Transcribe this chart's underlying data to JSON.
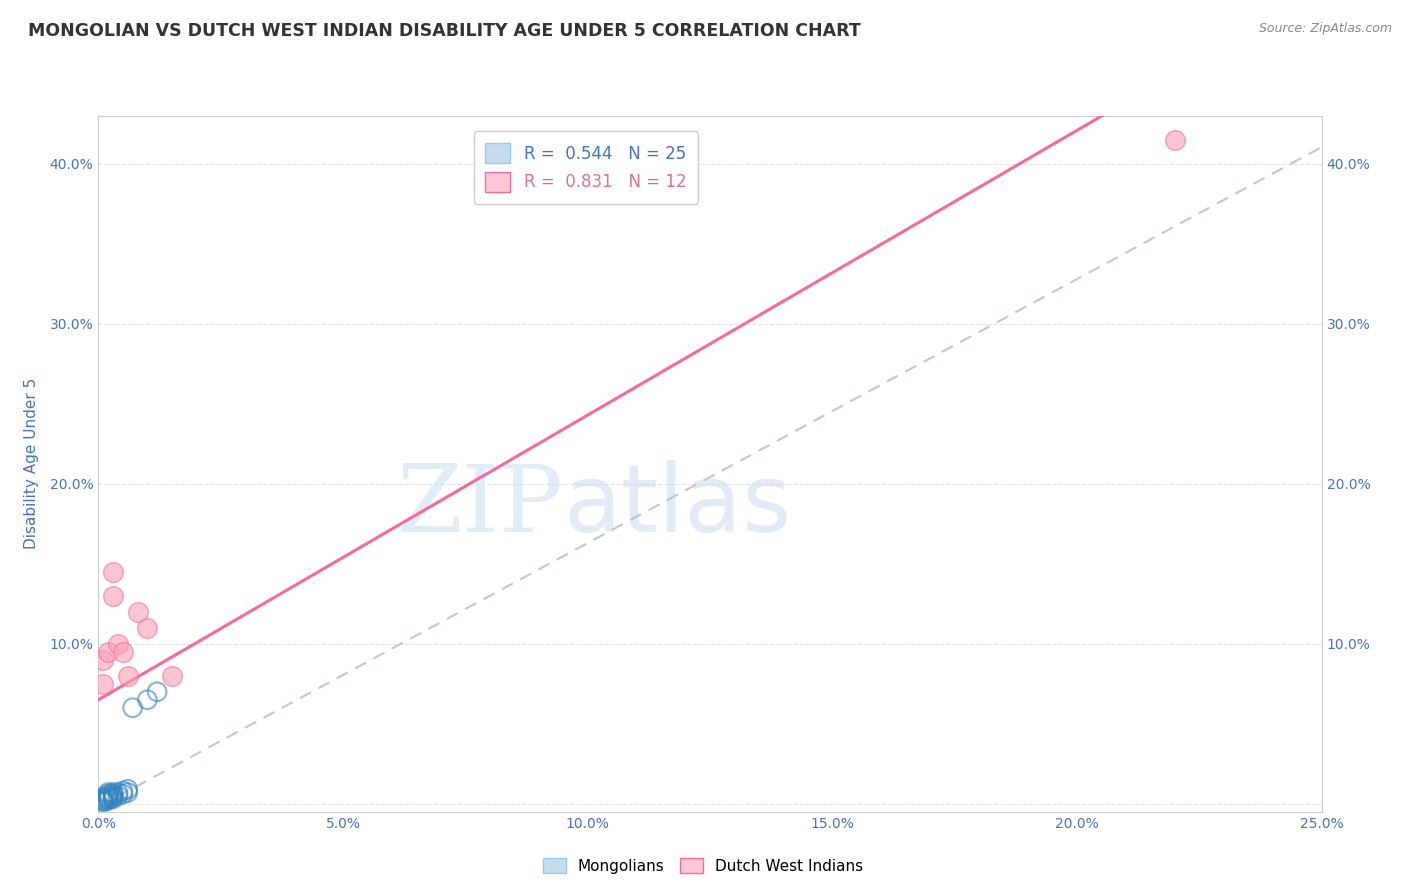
{
  "title": "MONGOLIAN VS DUTCH WEST INDIAN DISABILITY AGE UNDER 5 CORRELATION CHART",
  "source": "Source: ZipAtlas.com",
  "ylabel_label": "Disability Age Under 5",
  "xlim": [
    0.0,
    0.25
  ],
  "ylim": [
    -0.005,
    0.43
  ],
  "mongolians": {
    "x": [
      0.001,
      0.001,
      0.001,
      0.001,
      0.001,
      0.002,
      0.002,
      0.002,
      0.002,
      0.002,
      0.002,
      0.003,
      0.003,
      0.003,
      0.003,
      0.003,
      0.004,
      0.004,
      0.005,
      0.005,
      0.006,
      0.006,
      0.007,
      0.01,
      0.012
    ],
    "y": [
      0.001,
      0.002,
      0.002,
      0.003,
      0.004,
      0.002,
      0.003,
      0.004,
      0.005,
      0.006,
      0.007,
      0.003,
      0.004,
      0.005,
      0.006,
      0.007,
      0.005,
      0.007,
      0.006,
      0.008,
      0.007,
      0.009,
      0.06,
      0.065,
      0.07
    ],
    "color": "#6baed6",
    "edge_color": "#3182bd",
    "R": 0.544,
    "N": 25
  },
  "dutch": {
    "x": [
      0.001,
      0.001,
      0.002,
      0.003,
      0.003,
      0.004,
      0.005,
      0.006,
      0.008,
      0.01,
      0.015,
      0.22
    ],
    "y": [
      0.075,
      0.09,
      0.095,
      0.13,
      0.145,
      0.1,
      0.095,
      0.08,
      0.12,
      0.11,
      0.08,
      0.415
    ],
    "color": "#fa9fb5",
    "edge_color": "#f768a1",
    "R": 0.831,
    "N": 12
  },
  "mongo_line": {
    "slope": 1.65,
    "intercept": -0.002,
    "color": "#b0bfcf",
    "style": "--"
  },
  "dutch_line": {
    "slope": 1.78,
    "intercept": 0.065,
    "color": "#f768a1",
    "style": "-"
  },
  "watermark_zip": "ZIP",
  "watermark_atlas": "atlas",
  "background_color": "#ffffff",
  "grid_color": "#e0e0e0",
  "title_color": "#333333",
  "axis_label_color": "#4472c4",
  "tick_label_color": "#4472c4",
  "source_color": "#888888"
}
